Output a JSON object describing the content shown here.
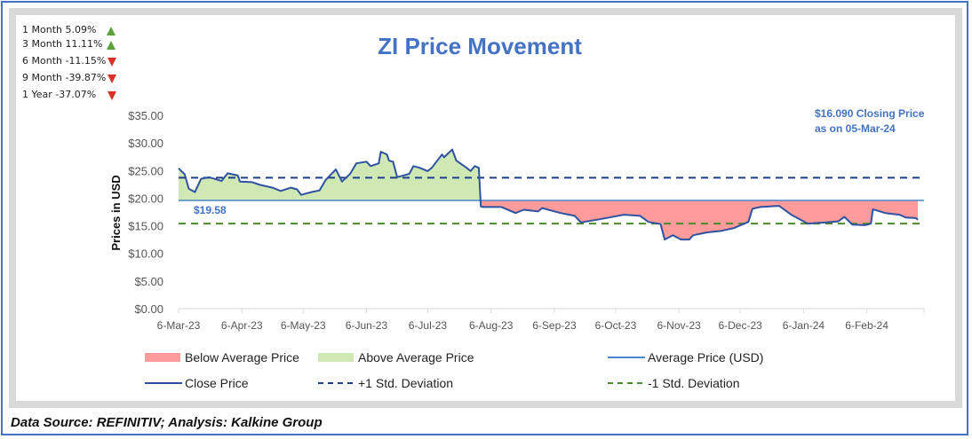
{
  "performance": [
    {
      "label": "1 Month 5.09%",
      "direction": "up"
    },
    {
      "label": "3 Month 11.11%",
      "direction": "up"
    },
    {
      "label": "6 Month -11.15%",
      "direction": "down"
    },
    {
      "label": "9 Month -39.87%",
      "direction": "down"
    },
    {
      "label": "1 Year -37.07%",
      "direction": "down"
    }
  ],
  "colors": {
    "close": "#2f52a0",
    "average": "#4a86c8",
    "plus_std": "#1f3d8a",
    "minus_std": "#4b8a2a",
    "above": "#cfe8b4",
    "below": "#ff9b9b",
    "title": "#4472c4",
    "up": "#5aa13a",
    "down": "#d9302a"
  },
  "chart_data": {
    "type": "area",
    "title": "ZI Price Movement",
    "ylabel": "Prices in USD",
    "xlabel": "",
    "ylim": [
      0,
      35
    ],
    "yticks": [
      0,
      5,
      10,
      15,
      20,
      25,
      30,
      35
    ],
    "ytick_labels": [
      "$0.00",
      "$5.00",
      "$10.00",
      "$15.00",
      "$20.00",
      "$25.00",
      "$30.00",
      "$35.00"
    ],
    "x_unit": "days since 6-Mar-23",
    "xlim": [
      0,
      365
    ],
    "xticks": [
      0,
      31,
      61,
      92,
      122,
      153,
      184,
      214,
      245,
      275,
      306,
      337,
      365
    ],
    "xtick_labels": [
      "6-Mar-23",
      "6-Apr-23",
      "6-May-23",
      "6-Jun-23",
      "6-Jul-23",
      "6-Aug-23",
      "6-Sep-23",
      "6-Oct-23",
      "6-Nov-23",
      "6-Dec-23",
      "6-Jan-24",
      "6-Feb-24",
      ""
    ],
    "average": 19.58,
    "average_label": "$19.58",
    "plus_std": 23.7,
    "minus_std": 15.4,
    "annotation": [
      "$16.090 Closing Price",
      "as on 05-Mar-24"
    ],
    "close": {
      "x": [
        0,
        3,
        5,
        8,
        11,
        15,
        21,
        24,
        29,
        30,
        36,
        40,
        46,
        50,
        55,
        58,
        60,
        65,
        69,
        72,
        77,
        80,
        84,
        87,
        92,
        94,
        98,
        99,
        102,
        103,
        105,
        107,
        113,
        115,
        118,
        122,
        124,
        129,
        130,
        134,
        136,
        141,
        143,
        145,
        147,
        148,
        149,
        158,
        165,
        169,
        176,
        178,
        187,
        194,
        197,
        205,
        211,
        218,
        226,
        230,
        236,
        238,
        242,
        246,
        250,
        252,
        259,
        266,
        272,
        279,
        281,
        285,
        294,
        300,
        308,
        317,
        323,
        326,
        330,
        336,
        339,
        340,
        346,
        353,
        356,
        361,
        362
      ],
      "y": [
        25.4,
        24.3,
        21.7,
        21.1,
        23.5,
        23.8,
        23.1,
        24.5,
        24.1,
        23.0,
        22.9,
        22.4,
        21.9,
        21.3,
        21.9,
        21.6,
        20.6,
        21.1,
        21.4,
        23.3,
        25.2,
        23.0,
        24.4,
        26.3,
        26.6,
        25.8,
        26.3,
        28.4,
        27.9,
        26.8,
        26.6,
        23.8,
        24.4,
        25.8,
        25.5,
        24.9,
        25.5,
        27.9,
        27.4,
        28.8,
        26.8,
        25.5,
        24.9,
        25.8,
        25.5,
        18.5,
        18.4,
        18.4,
        17.3,
        17.9,
        17.6,
        18.2,
        17.3,
        16.8,
        15.6,
        16.1,
        16.5,
        17.0,
        16.8,
        15.7,
        15.3,
        12.5,
        13.3,
        12.5,
        12.5,
        13.3,
        13.8,
        14.1,
        14.6,
        15.7,
        18.1,
        18.4,
        18.6,
        17.0,
        15.4,
        15.6,
        15.8,
        16.6,
        15.2,
        15.1,
        15.4,
        18.0,
        17.3,
        17.0,
        16.5,
        16.4,
        16.09
      ]
    },
    "legend": {
      "placement": "bottom",
      "items": [
        {
          "label": "Below Average Price",
          "kind": "fill",
          "color_key": "below"
        },
        {
          "label": "Above Average Price",
          "kind": "fill",
          "color_key": "above"
        },
        {
          "label": "Average Price (USD)",
          "kind": "line",
          "color_key": "average"
        },
        {
          "label": "Close Price",
          "kind": "line",
          "color_key": "close"
        },
        {
          "label": "+1 Std. Deviation",
          "kind": "dash",
          "color_key": "plus_std"
        },
        {
          "label": "-1 Std. Deviation",
          "kind": "dash",
          "color_key": "minus_std"
        }
      ]
    }
  },
  "footer": "Data Source: REFINITIV; Analysis: Kalkine Group"
}
